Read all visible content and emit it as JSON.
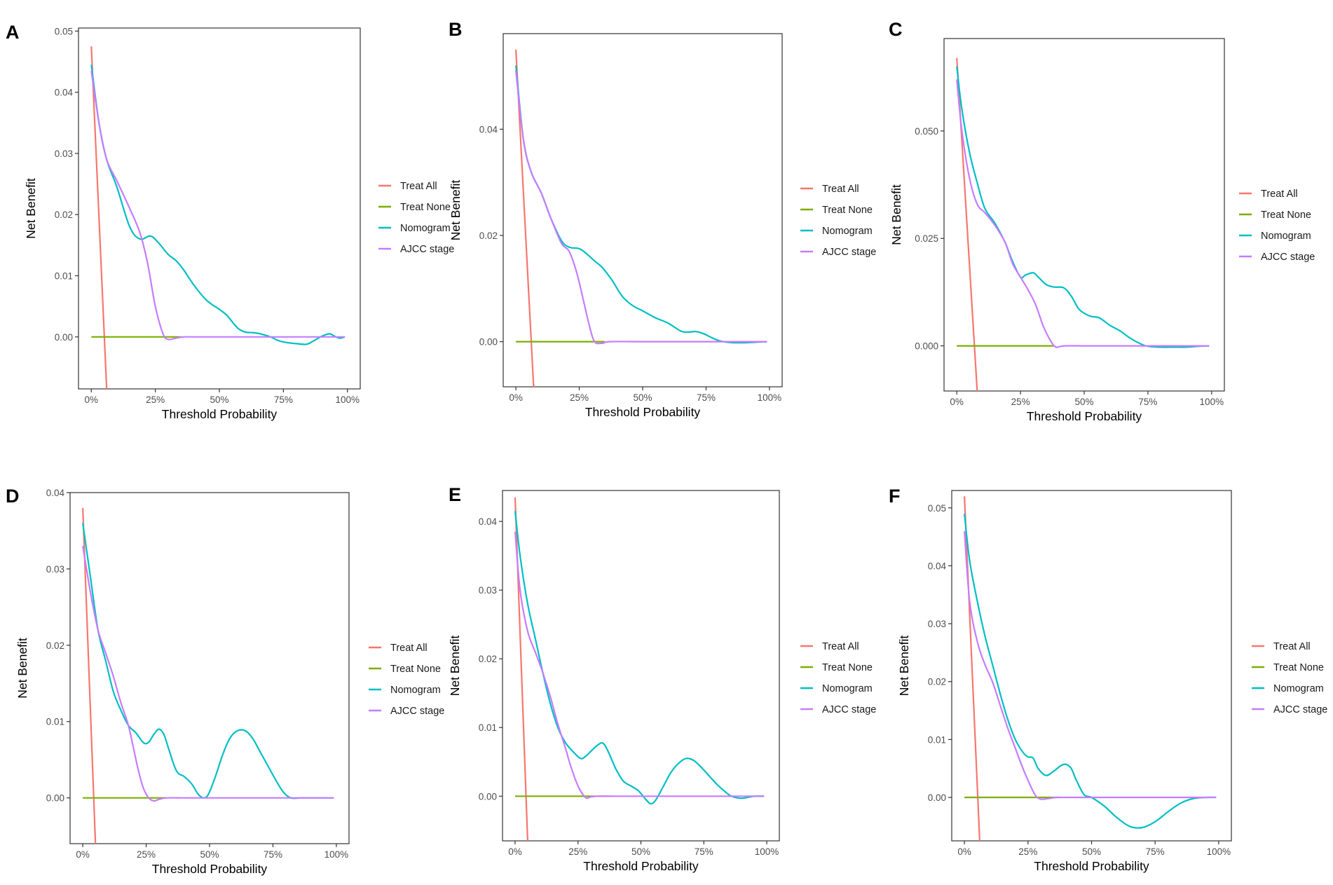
{
  "figure": {
    "common": {
      "xlabel": "Threshold Probability",
      "ylabel": "Net Benefit",
      "x_ticks": [
        0,
        25,
        50,
        75,
        100
      ],
      "x_tick_labels": [
        "0%",
        "25%",
        "50%",
        "75%",
        "100%"
      ],
      "legend_position": "right"
    },
    "colors": {
      "Treat All": "#F8766D",
      "Treat None": "#7CAE00",
      "Nomogram": "#00BFC4",
      "AJCC stage": "#C77CFF"
    }
  },
  "chart_data": [
    {
      "type": "line",
      "panel": "A",
      "xlabel": "Threshold Probability",
      "ylabel": "Net Benefit",
      "xlim": [
        -5,
        105
      ],
      "ylim": [
        -0.0085,
        0.0505
      ],
      "y_ticks": [
        0,
        0.01,
        0.02,
        0.03,
        0.04,
        0.05
      ],
      "y_tick_labels": [
        "0.00",
        "0.01",
        "0.02",
        "0.03",
        "0.04",
        "0.05"
      ],
      "legend": [
        "Treat All",
        "Treat None",
        "Nomogram",
        "AJCC stage"
      ],
      "series": [
        {
          "name": "Treat All",
          "x": [
            0,
            6
          ],
          "y": [
            0.0475,
            -0.0085
          ]
        },
        {
          "name": "Treat None",
          "x": [
            0,
            35
          ],
          "y": [
            0,
            0
          ]
        },
        {
          "name": "Nomogram",
          "x": [
            0,
            3,
            6,
            10,
            15,
            19,
            23,
            26,
            30,
            33,
            36,
            40,
            45,
            50,
            53,
            57,
            60,
            63,
            66,
            70,
            73,
            76,
            80,
            84,
            87,
            90,
            93,
            95,
            97,
            99
          ],
          "y": [
            0.0445,
            0.035,
            0.029,
            0.0245,
            0.018,
            0.016,
            0.0165,
            0.0155,
            0.0135,
            0.0125,
            0.011,
            0.0085,
            0.006,
            0.0045,
            0.0035,
            0.0015,
            0.0008,
            0.0007,
            0.0005,
            0.0,
            -0.0006,
            -0.0009,
            -0.0011,
            -0.0012,
            -0.0006,
            0.0001,
            0.0005,
            0.0001,
            -0.0002,
            0.0
          ]
        },
        {
          "name": "AJCC stage",
          "x": [
            0,
            3,
            6,
            10,
            15,
            19,
            22,
            25,
            28,
            30,
            33,
            36,
            40,
            50,
            60,
            70,
            80,
            90,
            99
          ],
          "y": [
            0.0435,
            0.035,
            0.029,
            0.0255,
            0.021,
            0.017,
            0.012,
            0.005,
            0.0005,
            -0.0004,
            -0.0002,
            0.0,
            0.0,
            0.0,
            0.0,
            0.0,
            0.0,
            0.0,
            0.0
          ]
        }
      ]
    },
    {
      "type": "line",
      "panel": "B",
      "xlabel": "Threshold Probability",
      "ylabel": "Net Benefit",
      "xlim": [
        -5,
        105
      ],
      "ylim": [
        -0.0085,
        0.058
      ],
      "y_ticks": [
        0,
        0.02,
        0.04
      ],
      "y_tick_labels": [
        "0.00",
        "0.02",
        "0.04"
      ],
      "legend": [
        "Treat All",
        "Treat None",
        "Nomogram",
        "AJCC stage"
      ],
      "series": [
        {
          "name": "Treat All",
          "x": [
            0,
            7
          ],
          "y": [
            0.055,
            -0.0085
          ]
        },
        {
          "name": "Treat None",
          "x": [
            0,
            35
          ],
          "y": [
            0,
            0
          ]
        },
        {
          "name": "Nomogram",
          "x": [
            0,
            3,
            6,
            10,
            14,
            18,
            21,
            25,
            28,
            31,
            34,
            38,
            42,
            46,
            50,
            55,
            60,
            65,
            68,
            71,
            74,
            77,
            80,
            83,
            86,
            90,
            95,
            99
          ],
          "y": [
            0.052,
            0.038,
            0.032,
            0.028,
            0.023,
            0.019,
            0.0178,
            0.0175,
            0.0165,
            0.0152,
            0.014,
            0.0115,
            0.0085,
            0.0068,
            0.0058,
            0.0045,
            0.0035,
            0.002,
            0.0018,
            0.0019,
            0.0015,
            0.0008,
            0.0002,
            -0.0001,
            -0.0002,
            -0.0002,
            -0.0001,
            0.0
          ]
        },
        {
          "name": "AJCC stage",
          "x": [
            0,
            3,
            6,
            10,
            14,
            18,
            21,
            24,
            27,
            29,
            31,
            34,
            37,
            50,
            60,
            70,
            80,
            90,
            99
          ],
          "y": [
            0.051,
            0.038,
            0.032,
            0.028,
            0.023,
            0.0185,
            0.017,
            0.013,
            0.007,
            0.003,
            0.0,
            -0.0003,
            0.0,
            0.0,
            0.0,
            0.0,
            0.0,
            0.0,
            0.0
          ]
        }
      ]
    },
    {
      "type": "line",
      "panel": "C",
      "xlabel": "Threshold Probability",
      "ylabel": "Net Benefit",
      "xlim": [
        -5,
        105
      ],
      "ylim": [
        -0.0105,
        0.0715
      ],
      "y_ticks": [
        0,
        0.025,
        0.05
      ],
      "y_tick_labels": [
        "0.000",
        "0.025",
        "0.050"
      ],
      "legend": [
        "Treat All",
        "Treat None",
        "Nomogram",
        "AJCC stage"
      ],
      "series": [
        {
          "name": "Treat All",
          "x": [
            0,
            8
          ],
          "y": [
            0.067,
            -0.0105
          ]
        },
        {
          "name": "Treat None",
          "x": [
            0,
            38
          ],
          "y": [
            0,
            0
          ]
        },
        {
          "name": "Nomogram",
          "x": [
            0,
            2,
            5,
            8,
            11,
            15,
            19,
            22,
            25,
            27,
            30,
            32,
            35,
            38,
            42,
            45,
            48,
            52,
            56,
            60,
            64,
            68,
            72,
            75,
            80,
            85,
            90,
            95,
            99
          ],
          "y": [
            0.065,
            0.055,
            0.045,
            0.038,
            0.032,
            0.0285,
            0.024,
            0.0195,
            0.016,
            0.0165,
            0.017,
            0.016,
            0.0143,
            0.0137,
            0.0135,
            0.0115,
            0.0085,
            0.007,
            0.0065,
            0.0048,
            0.0035,
            0.0018,
            0.0005,
            -0.0001,
            -0.0003,
            -0.0003,
            -0.0003,
            -0.0001,
            0.0
          ]
        },
        {
          "name": "AJCC stage",
          "x": [
            0,
            2,
            5,
            8,
            11,
            15,
            19,
            22,
            25,
            28,
            31,
            34,
            37,
            39,
            42,
            50,
            60,
            70,
            80,
            90,
            99
          ],
          "y": [
            0.062,
            0.05,
            0.039,
            0.033,
            0.031,
            0.028,
            0.024,
            0.019,
            0.016,
            0.013,
            0.0095,
            0.0045,
            0.001,
            -0.0003,
            0.0,
            0.0,
            0.0,
            0.0,
            0.0,
            0.0,
            0.0
          ]
        }
      ]
    },
    {
      "type": "line",
      "panel": "D",
      "xlabel": "Threshold Probability",
      "ylabel": "Net Benefit",
      "xlim": [
        -5,
        105
      ],
      "ylim": [
        -0.006,
        0.04
      ],
      "y_ticks": [
        0,
        0.01,
        0.02,
        0.03,
        0.04
      ],
      "y_tick_labels": [
        "0.00",
        "0.01",
        "0.02",
        "0.03",
        "0.04"
      ],
      "legend": [
        "Treat All",
        "Treat None",
        "Nomogram",
        "AJCC stage"
      ],
      "series": [
        {
          "name": "Treat All",
          "x": [
            0,
            5
          ],
          "y": [
            0.038,
            -0.006
          ]
        },
        {
          "name": "Treat None",
          "x": [
            0,
            33
          ],
          "y": [
            0,
            0
          ]
        },
        {
          "name": "Nomogram",
          "x": [
            0,
            3,
            6,
            9,
            12,
            15,
            18,
            21,
            24,
            26,
            28,
            30,
            32,
            34,
            37,
            40,
            43,
            46,
            49,
            52,
            55,
            58,
            61,
            64,
            67,
            70,
            73,
            76,
            79,
            82,
            86,
            90,
            95,
            99
          ],
          "y": [
            0.036,
            0.029,
            0.022,
            0.018,
            0.014,
            0.0115,
            0.0095,
            0.0085,
            0.0072,
            0.0073,
            0.0083,
            0.009,
            0.0083,
            0.0063,
            0.0035,
            0.0028,
            0.0018,
            0.0003,
            0.0002,
            0.0025,
            0.0055,
            0.0078,
            0.0088,
            0.0088,
            0.0078,
            0.006,
            0.0042,
            0.0024,
            0.0008,
            0.0,
            0.0,
            0.0,
            0.0,
            0.0
          ]
        },
        {
          "name": "AJCC stage",
          "x": [
            0,
            3,
            6,
            9,
            12,
            15,
            18,
            20,
            22,
            24,
            26,
            28,
            30,
            33,
            40,
            50,
            60,
            70,
            80,
            90,
            99
          ],
          "y": [
            0.033,
            0.027,
            0.022,
            0.019,
            0.016,
            0.0125,
            0.0095,
            0.0065,
            0.0035,
            0.0012,
            0.0,
            -0.0004,
            -0.0002,
            0.0,
            0.0,
            0.0,
            0.0,
            0.0,
            0.0,
            0.0,
            0.0
          ]
        }
      ]
    },
    {
      "type": "line",
      "panel": "E",
      "xlabel": "Threshold Probability",
      "ylabel": "Net Benefit",
      "xlim": [
        -5,
        105
      ],
      "ylim": [
        -0.0065,
        0.0445
      ],
      "y_ticks": [
        0,
        0.01,
        0.02,
        0.03,
        0.04
      ],
      "y_tick_labels": [
        "0.00",
        "0.01",
        "0.02",
        "0.03",
        "0.04"
      ],
      "legend": [
        "Treat All",
        "Treat None",
        "Nomogram",
        "AJCC stage"
      ],
      "series": [
        {
          "name": "Treat All",
          "x": [
            0,
            5
          ],
          "y": [
            0.0435,
            -0.0065
          ]
        },
        {
          "name": "Treat None",
          "x": [
            0,
            37
          ],
          "y": [
            0,
            0
          ]
        },
        {
          "name": "Nomogram",
          "x": [
            0,
            2,
            5,
            8,
            11,
            14,
            17,
            20,
            23,
            26,
            28,
            30,
            33,
            35,
            37,
            40,
            43,
            46,
            49,
            52,
            54,
            56,
            59,
            62,
            65,
            68,
            71,
            74,
            77,
            80,
            83,
            86,
            90,
            95,
            99
          ],
          "y": [
            0.0415,
            0.035,
            0.028,
            0.023,
            0.018,
            0.0135,
            0.01,
            0.0078,
            0.0065,
            0.0055,
            0.0058,
            0.0065,
            0.0075,
            0.0077,
            0.0065,
            0.004,
            0.0022,
            0.0015,
            0.0008,
            -0.0005,
            -0.0011,
            -0.0005,
            0.0015,
            0.0035,
            0.0048,
            0.0055,
            0.0052,
            0.0042,
            0.003,
            0.0018,
            0.0008,
            0.0,
            -0.0003,
            0.0,
            0.0
          ]
        },
        {
          "name": "AJCC stage",
          "x": [
            0,
            2,
            5,
            8,
            11,
            14,
            17,
            20,
            22,
            25,
            28,
            30,
            33,
            40,
            50,
            60,
            70,
            80,
            90,
            99
          ],
          "y": [
            0.0385,
            0.03,
            0.024,
            0.021,
            0.018,
            0.0145,
            0.0105,
            0.007,
            0.0045,
            0.0015,
            -0.0002,
            -0.0001,
            0.0,
            0.0,
            0.0,
            0.0,
            0.0,
            0.0,
            0.0,
            0.0
          ]
        }
      ]
    },
    {
      "type": "line",
      "panel": "F",
      "xlabel": "Threshold Probability",
      "ylabel": "Net Benefit",
      "xlim": [
        -5,
        105
      ],
      "ylim": [
        -0.0075,
        0.053
      ],
      "y_ticks": [
        0,
        0.01,
        0.02,
        0.03,
        0.04,
        0.05
      ],
      "y_tick_labels": [
        "0.00",
        "0.01",
        "0.02",
        "0.03",
        "0.04",
        "0.05"
      ],
      "legend": [
        "Treat All",
        "Treat None",
        "Nomogram",
        "AJCC stage"
      ],
      "series": [
        {
          "name": "Treat All",
          "x": [
            0,
            6
          ],
          "y": [
            0.052,
            -0.0075
          ]
        },
        {
          "name": "Treat None",
          "x": [
            0,
            38
          ],
          "y": [
            0,
            0
          ]
        },
        {
          "name": "Nomogram",
          "x": [
            0,
            2,
            5,
            8,
            11,
            14,
            17,
            20,
            23,
            25,
            27,
            29,
            32,
            35,
            38,
            40,
            42,
            44,
            47,
            50,
            55,
            60,
            65,
            70,
            75,
            80,
            85,
            90,
            95,
            99
          ],
          "y": [
            0.049,
            0.041,
            0.034,
            0.028,
            0.023,
            0.018,
            0.0135,
            0.01,
            0.0078,
            0.007,
            0.0068,
            0.005,
            0.0038,
            0.0045,
            0.0055,
            0.0057,
            0.005,
            0.003,
            0.0005,
            0.0,
            -0.0015,
            -0.0035,
            -0.005,
            -0.0052,
            -0.0042,
            -0.0025,
            -0.001,
            -0.0002,
            0.0,
            0.0
          ]
        },
        {
          "name": "AJCC stage",
          "x": [
            0,
            2,
            5,
            8,
            11,
            14,
            17,
            20,
            23,
            26,
            28,
            30,
            33,
            36,
            40,
            50,
            60,
            70,
            80,
            90,
            99
          ],
          "y": [
            0.046,
            0.034,
            0.027,
            0.023,
            0.02,
            0.016,
            0.012,
            0.0085,
            0.005,
            0.002,
            0.0003,
            -0.0003,
            -0.0002,
            0.0,
            0.0,
            0.0,
            0.0,
            0.0,
            0.0,
            0.0,
            0.0
          ]
        }
      ]
    }
  ]
}
